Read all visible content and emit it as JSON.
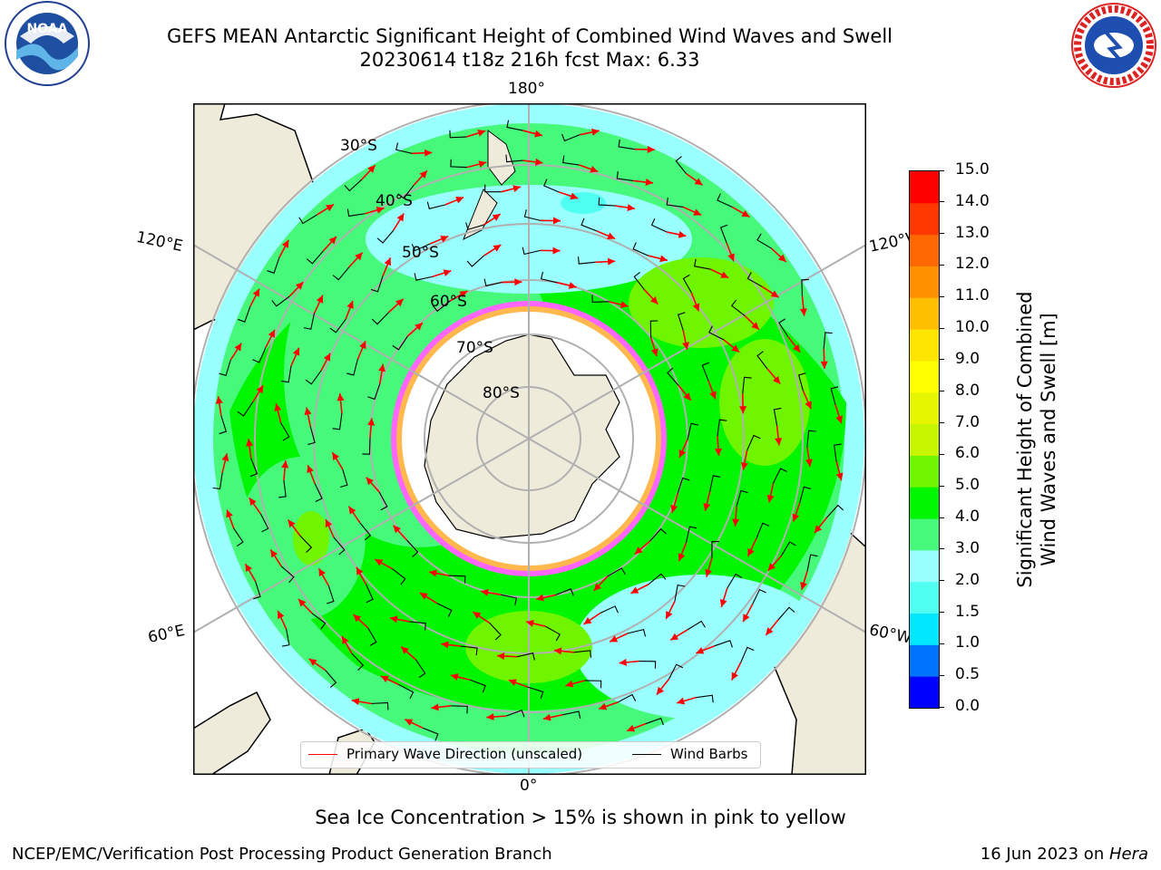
{
  "header": {
    "title_line1": "GEFS MEAN Antarctic Significant Height of Combined Wind Waves and Swell",
    "title_line2": "20230614 t18z 216h fcst   Max: 6.33",
    "left_logo_text": "NOAA",
    "left_logo_ring_text": "NATIONAL OCEANIC AND ATMOSPHERIC ADMINISTRATION · U.S. DEPARTMENT OF COMMERCE",
    "right_logo_ring_text": "NATIONAL WEATHER SERVICE"
  },
  "map": {
    "projection": "south-polar-stereographic",
    "longitude_labels": [
      "180°",
      "120°E",
      "120°W",
      "60°E",
      "60°W",
      "0°"
    ],
    "latitude_labels": [
      "30°S",
      "40°S",
      "50°S",
      "60°S",
      "70°S",
      "80°S"
    ],
    "land_color": "#efebdb",
    "ocean_colors": {
      "light": "#99ffff",
      "cyan": "#4ffff1",
      "mid": "#46f97a",
      "green": "#00f500",
      "lime": "#6ff500"
    }
  },
  "legend": {
    "items": [
      {
        "label": "Primary Wave Direction (unscaled)",
        "color": "#ff0000"
      },
      {
        "label": "Wind Barbs",
        "color": "#000000"
      }
    ]
  },
  "colorbar": {
    "title_line1": "Significant Height of Combined",
    "title_line2": "Wind Waves and Swell [m]",
    "tick_labels": [
      "0.0",
      "0.5",
      "1.0",
      "1.5",
      "2.0",
      "3.0",
      "4.0",
      "5.0",
      "6.0",
      "7.0",
      "8.0",
      "9.0",
      "10.0",
      "11.0",
      "12.0",
      "13.0",
      "14.0",
      "15.0"
    ],
    "colors": [
      "#0000ff",
      "#0073ff",
      "#00e7ff",
      "#4ffff1",
      "#99ffff",
      "#46f97a",
      "#00f500",
      "#6ff500",
      "#c8f500",
      "#e6f500",
      "#ffff00",
      "#fee600",
      "#ffbf00",
      "#ff9000",
      "#ff6700",
      "#ff3800",
      "#ff0000"
    ]
  },
  "notes": {
    "sea_ice": "Sea Ice Concentration > 15% is shown in pink to yellow"
  },
  "footer": {
    "left": "NCEP/EMC/Verification Post Processing Product Generation Branch",
    "right_date": "16 Jun 2023 on ",
    "right_host": "Hera"
  }
}
